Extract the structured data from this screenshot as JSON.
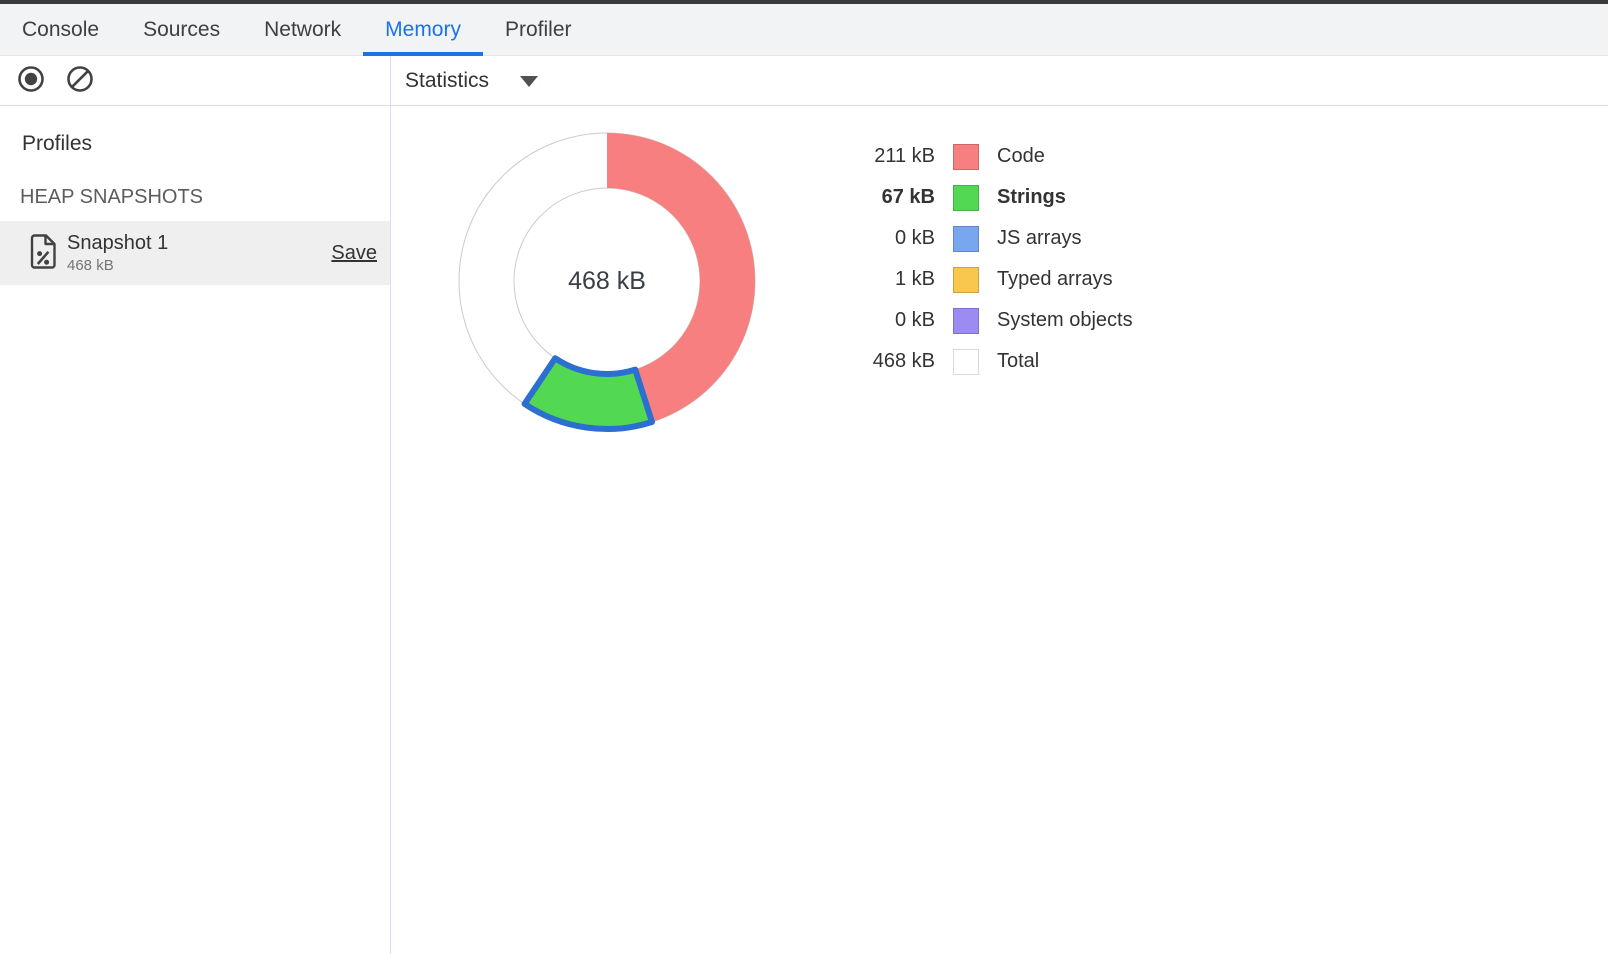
{
  "tabs": [
    {
      "label": "Console",
      "active": false
    },
    {
      "label": "Sources",
      "active": false
    },
    {
      "label": "Network",
      "active": false
    },
    {
      "label": "Memory",
      "active": true
    },
    {
      "label": "Profiler",
      "active": false
    }
  ],
  "toolbar": {
    "record_icon": "record",
    "clear_icon": "clear-block",
    "dropdown_label": "Statistics",
    "dropdown_icon": "chevron-down"
  },
  "sidebar": {
    "heading": "Profiles",
    "section_heading": "HEAP SNAPSHOTS",
    "snapshot": {
      "icon": "heap-snapshot-document",
      "title": "Snapshot 1",
      "size": "468 kB",
      "save_label": "Save",
      "selected": true
    }
  },
  "colors": {
    "accent": "#1a73e8",
    "selection_stroke": "#2b6fd0",
    "divider": "#d5e1f3",
    "tabbar_bg": "#f1f3f4",
    "selected_row_bg": "#efefef",
    "icon": "#424242",
    "text": "#333333",
    "muted_text": "#757575",
    "section_heading_text": "#5c5c5c",
    "donut_outline": "#cbcbcb"
  },
  "chart_data": {
    "type": "pie",
    "donut": true,
    "legend_position": "right",
    "center_label": "468 kB",
    "unit": "kB",
    "total": {
      "label": "Total",
      "value_kb": 468,
      "value_label": "468 kB",
      "color": "#ffffff"
    },
    "segments": [
      {
        "label": "Code",
        "value_kb": 211,
        "value_label": "211 kB",
        "color": "#f87f7f",
        "selected": false
      },
      {
        "label": "Strings",
        "value_kb": 67,
        "value_label": "67 kB",
        "color": "#52d852",
        "selected": true
      },
      {
        "label": "JS arrays",
        "value_kb": 0,
        "value_label": "0 kB",
        "color": "#78a7f0",
        "selected": false
      },
      {
        "label": "Typed arrays",
        "value_kb": 1,
        "value_label": "1 kB",
        "color": "#f9c64e",
        "selected": false
      },
      {
        "label": "System objects",
        "value_kb": 0,
        "value_label": "0 kB",
        "color": "#9c8cf2",
        "selected": false
      }
    ]
  }
}
